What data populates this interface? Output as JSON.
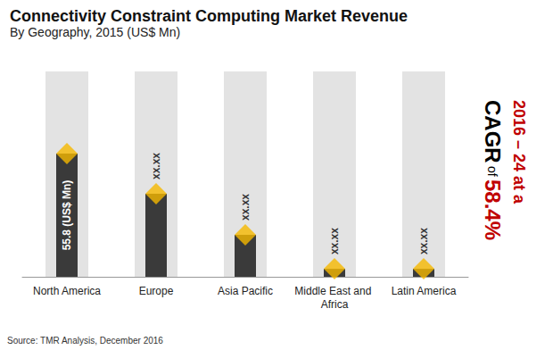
{
  "chart_data": {
    "type": "bar",
    "title": "Connectivity Constraint Computing Market Revenue",
    "subtitle": "By Geography, 2015 (US$ Mn)",
    "categories": [
      "North America",
      "Europe",
      "Asia Pacific",
      "Middle East and Africa",
      "Latin America"
    ],
    "values": [
      55.8,
      37.6,
      19.0,
      3.6,
      3.6
    ],
    "value_labels": [
      "55.8 (US$ Mn)",
      "xx.xx",
      "xx.xx",
      "xx.xx",
      "xx.xx"
    ],
    "data_labels": true,
    "color": "#3a3a3a",
    "marker": "diamond",
    "ylim": [
      0,
      93
    ],
    "tick_labels": "x",
    "grid": false,
    "annotations": [
      "2016 – 24 at a",
      "CAGR",
      "of",
      "58.4%"
    ],
    "source": "Source: TMR Analysis, December 2016"
  }
}
